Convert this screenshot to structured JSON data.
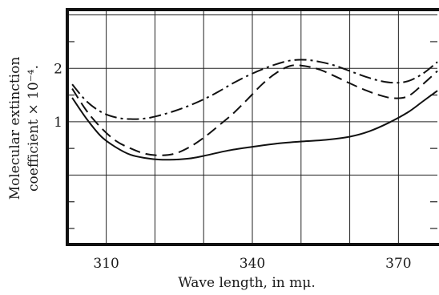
{
  "chart_data": {
    "type": "line",
    "xlabel": "Wave length, in mμ.",
    "ylabel_lines": [
      "Molecular extinction",
      "coefficient × 10⁻⁴."
    ],
    "xlim": [
      302,
      378
    ],
    "ylim": [
      -1.3,
      3.1
    ],
    "xticks": [
      310,
      340,
      370
    ],
    "yticks": [
      1,
      2
    ],
    "x_grid": [
      310,
      320,
      330,
      340,
      350,
      360,
      370
    ],
    "y_grid": [
      0,
      1,
      2,
      3
    ],
    "y_minor": [
      -1,
      -0.5,
      0.5,
      1.5,
      2.5
    ],
    "grid": true,
    "series": [
      {
        "style": "solid",
        "points": [
          [
            303,
            1.45
          ],
          [
            306,
            1.05
          ],
          [
            309,
            0.72
          ],
          [
            312,
            0.52
          ],
          [
            315,
            0.38
          ],
          [
            318,
            0.32
          ],
          [
            321,
            0.29
          ],
          [
            324,
            0.29
          ],
          [
            327,
            0.31
          ],
          [
            330,
            0.36
          ],
          [
            335,
            0.46
          ],
          [
            340,
            0.53
          ],
          [
            345,
            0.59
          ],
          [
            350,
            0.63
          ],
          [
            355,
            0.66
          ],
          [
            360,
            0.72
          ],
          [
            364,
            0.82
          ],
          [
            368,
            0.98
          ],
          [
            372,
            1.18
          ],
          [
            375,
            1.38
          ],
          [
            378,
            1.58
          ]
        ]
      },
      {
        "style": "dashed",
        "points": [
          [
            303,
            1.62
          ],
          [
            306,
            1.2
          ],
          [
            309,
            0.88
          ],
          [
            312,
            0.64
          ],
          [
            315,
            0.5
          ],
          [
            318,
            0.4
          ],
          [
            321,
            0.37
          ],
          [
            324,
            0.4
          ],
          [
            327,
            0.52
          ],
          [
            330,
            0.7
          ],
          [
            333,
            0.92
          ],
          [
            336,
            1.15
          ],
          [
            339,
            1.42
          ],
          [
            342,
            1.7
          ],
          [
            345,
            1.92
          ],
          [
            348,
            2.05
          ],
          [
            351,
            2.04
          ],
          [
            354,
            1.97
          ],
          [
            357,
            1.85
          ],
          [
            360,
            1.72
          ],
          [
            363,
            1.6
          ],
          [
            366,
            1.5
          ],
          [
            369,
            1.44
          ],
          [
            372,
            1.48
          ],
          [
            375,
            1.7
          ],
          [
            378,
            1.95
          ]
        ]
      },
      {
        "style": "dashdot",
        "points": [
          [
            303,
            1.7
          ],
          [
            306,
            1.38
          ],
          [
            309,
            1.18
          ],
          [
            312,
            1.08
          ],
          [
            315,
            1.05
          ],
          [
            318,
            1.06
          ],
          [
            321,
            1.12
          ],
          [
            324,
            1.2
          ],
          [
            327,
            1.3
          ],
          [
            330,
            1.42
          ],
          [
            333,
            1.56
          ],
          [
            336,
            1.72
          ],
          [
            339,
            1.86
          ],
          [
            342,
            1.98
          ],
          [
            345,
            2.08
          ],
          [
            348,
            2.15
          ],
          [
            351,
            2.16
          ],
          [
            354,
            2.12
          ],
          [
            357,
            2.05
          ],
          [
            360,
            1.95
          ],
          [
            363,
            1.85
          ],
          [
            366,
            1.77
          ],
          [
            369,
            1.73
          ],
          [
            372,
            1.76
          ],
          [
            375,
            1.9
          ],
          [
            378,
            2.12
          ]
        ]
      }
    ]
  }
}
